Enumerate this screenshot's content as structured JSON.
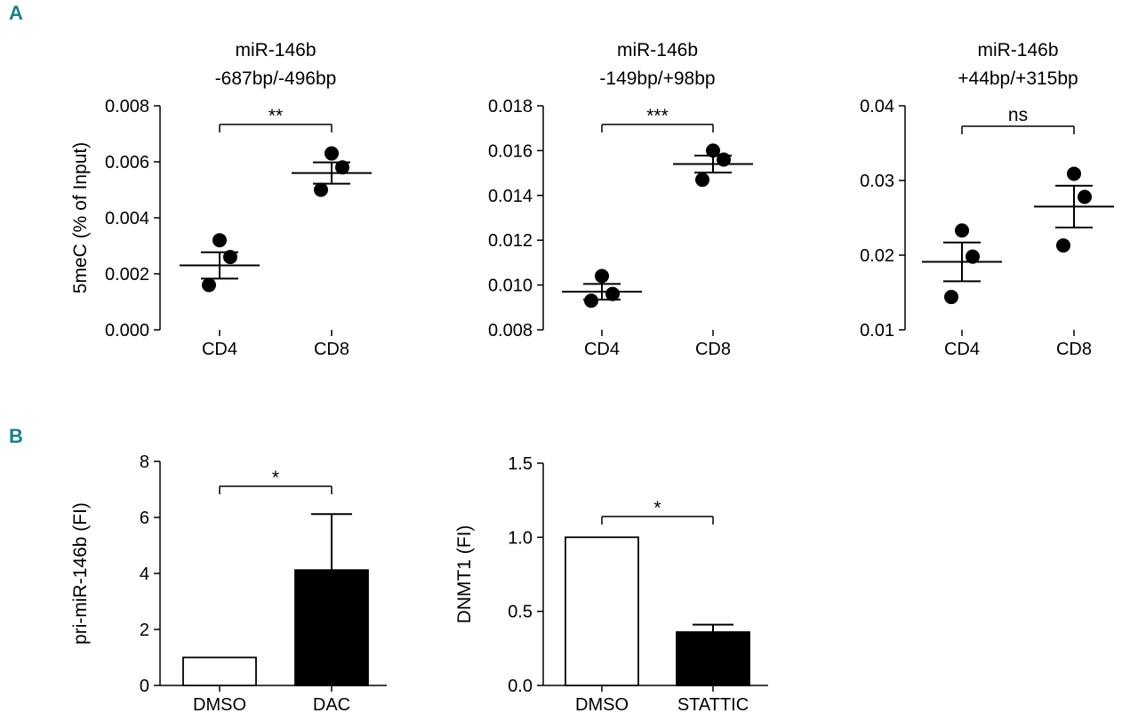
{
  "panel_labels": {
    "a": "A",
    "b": "B"
  },
  "colors": {
    "panel_label": "#1a7f86",
    "ink": "#000000",
    "bar_open": "#ffffff",
    "bar_filled": "#000000"
  },
  "chart_data": [
    {
      "id": "a1",
      "type": "scatter",
      "title_lines": [
        "miR-146b",
        "-687bp/-496bp"
      ],
      "ylabel": "5meC (% of Input)",
      "ylim": [
        0,
        0.008
      ],
      "yticks": [
        "0.000",
        "0.002",
        "0.004",
        "0.006",
        "0.008"
      ],
      "categories": [
        "CD4",
        "CD8"
      ],
      "points": [
        [
          0.0016,
          0.0026,
          0.0032
        ],
        [
          0.005,
          0.0058,
          0.0063
        ]
      ],
      "mean": [
        0.0023,
        0.0056
      ],
      "sem": [
        0.00047,
        0.00038
      ],
      "significance": "**"
    },
    {
      "id": "a2",
      "type": "scatter",
      "title_lines": [
        "miR-146b",
        "-149bp/+98bp"
      ],
      "ylabel": "",
      "ylim": [
        0.008,
        0.018
      ],
      "yticks": [
        "0.008",
        "0.010",
        "0.012",
        "0.014",
        "0.016",
        "0.018"
      ],
      "categories": [
        "CD4",
        "CD8"
      ],
      "points": [
        [
          0.0093,
          0.0096,
          0.0104
        ],
        [
          0.0147,
          0.0156,
          0.016
        ]
      ],
      "mean": [
        0.0097,
        0.0154
      ],
      "sem": [
        0.00035,
        0.00038
      ],
      "significance": "***"
    },
    {
      "id": "a3",
      "type": "scatter",
      "title_lines": [
        "miR-146b",
        "+44bp/+315bp"
      ],
      "ylabel": "",
      "ylim": [
        0.01,
        0.04
      ],
      "yticks": [
        "0.01",
        "0.02",
        "0.03",
        "0.04"
      ],
      "categories": [
        "CD4",
        "CD8"
      ],
      "points": [
        [
          0.0144,
          0.0198,
          0.0233
        ],
        [
          0.0213,
          0.0278,
          0.0309
        ]
      ],
      "mean": [
        0.0191,
        0.0265
      ],
      "sem": [
        0.0026,
        0.0028
      ],
      "significance": "ns"
    },
    {
      "id": "b1",
      "type": "bar",
      "title_lines": [],
      "ylabel": "pri-miR-146b (FI)",
      "ylim": [
        0,
        8
      ],
      "yticks": [
        "0",
        "2",
        "4",
        "6",
        "8"
      ],
      "categories": [
        "DMSO",
        "DAC"
      ],
      "values": [
        1.0,
        4.12
      ],
      "errors": [
        0,
        2.0
      ],
      "fills": [
        "open",
        "filled"
      ],
      "significance": "*"
    },
    {
      "id": "b2",
      "type": "bar",
      "title_lines": [],
      "ylabel": "DNMT1 (FI)",
      "ylim": [
        0,
        1.5
      ],
      "yticks": [
        "0.0",
        "0.5",
        "1.0",
        "1.5"
      ],
      "categories": [
        "DMSO",
        "STATTIC"
      ],
      "values": [
        1.0,
        0.36
      ],
      "errors": [
        0,
        0.05
      ],
      "fills": [
        "open",
        "filled"
      ],
      "significance": "*"
    }
  ]
}
